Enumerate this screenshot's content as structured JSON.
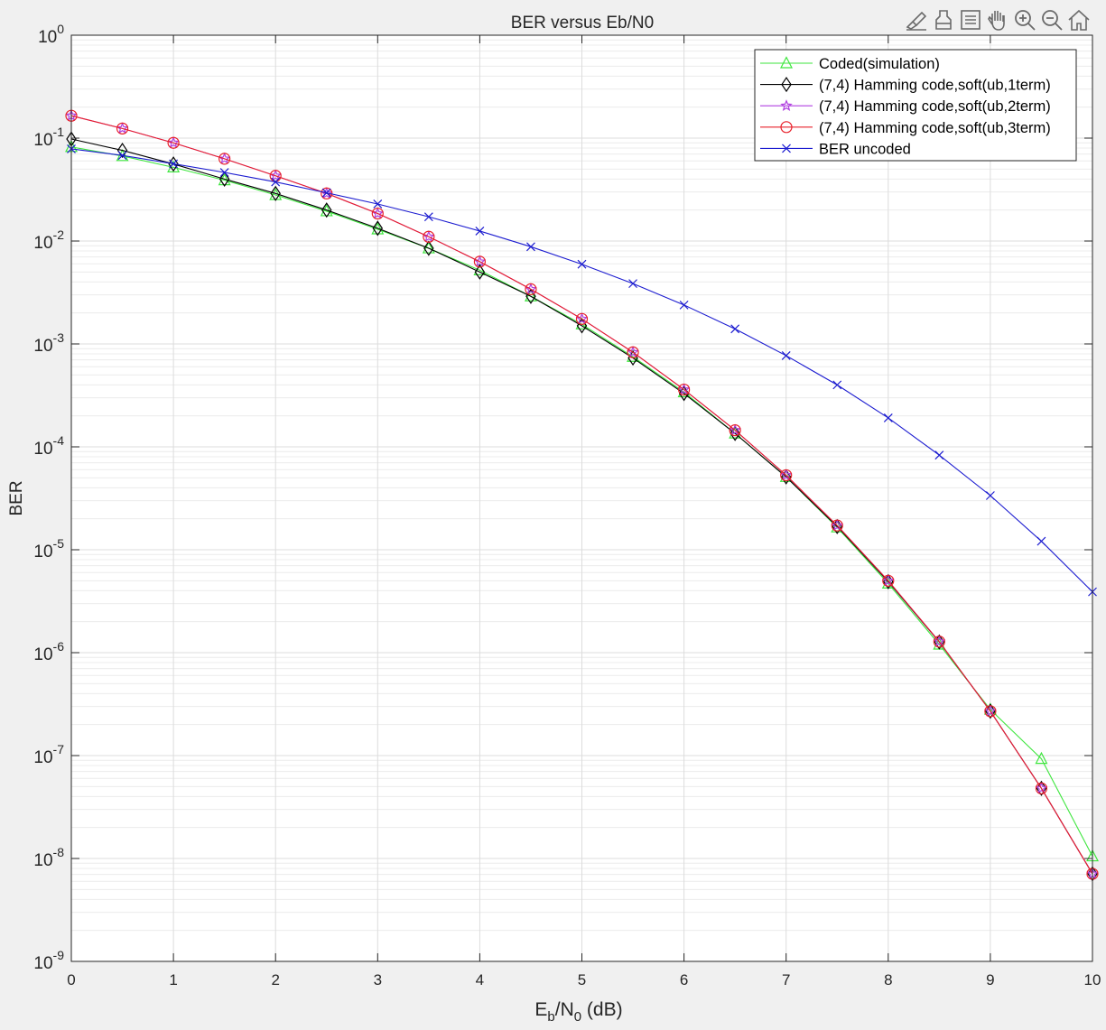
{
  "toolbar": {
    "icons": [
      "edit-plot-icon",
      "save-icon",
      "insert-legend-icon",
      "pan-icon",
      "zoom-in-icon",
      "zoom-out-icon",
      "home-icon"
    ]
  },
  "colors": {
    "background": "#f0f0f0",
    "axes_background": "#ffffff",
    "grid": "#dcdcdc",
    "axis": "#262626"
  },
  "chart_data": {
    "type": "line",
    "title": "BER versus Eb/N0",
    "xlabel": {
      "base": "E",
      "sub1": "b",
      "mid": "/N",
      "sub2": "0",
      "tail": " (dB)"
    },
    "ylabel": "BER",
    "xlim": [
      0,
      10
    ],
    "ylim": [
      1e-09,
      1
    ],
    "yscale": "log",
    "grid": true,
    "minor_grid": true,
    "legend_position": "top-right",
    "x_ticks": [
      {
        "value": 0,
        "label": "0"
      },
      {
        "value": 1,
        "label": "1"
      },
      {
        "value": 2,
        "label": "2"
      },
      {
        "value": 3,
        "label": "3"
      },
      {
        "value": 4,
        "label": "4"
      },
      {
        "value": 5,
        "label": "5"
      },
      {
        "value": 6,
        "label": "6"
      },
      {
        "value": 7,
        "label": "7"
      },
      {
        "value": 8,
        "label": "8"
      },
      {
        "value": 9,
        "label": "9"
      },
      {
        "value": 10,
        "label": "10"
      }
    ],
    "y_ticks": [
      {
        "exp": 0,
        "base": "10",
        "sup": "0"
      },
      {
        "exp": -1,
        "base": "10",
        "sup": "-1"
      },
      {
        "exp": -2,
        "base": "10",
        "sup": "-2"
      },
      {
        "exp": -3,
        "base": "10",
        "sup": "-3"
      },
      {
        "exp": -4,
        "base": "10",
        "sup": "-4"
      },
      {
        "exp": -5,
        "base": "10",
        "sup": "-5"
      },
      {
        "exp": -6,
        "base": "10",
        "sup": "-6"
      },
      {
        "exp": -7,
        "base": "10",
        "sup": "-7"
      },
      {
        "exp": -8,
        "base": "10",
        "sup": "-8"
      },
      {
        "exp": -9,
        "base": "10",
        "sup": "-9"
      }
    ],
    "x": [
      0,
      0.5,
      1,
      1.5,
      2,
      2.5,
      3,
      3.5,
      4,
      4.5,
      5,
      5.5,
      6,
      6.5,
      7,
      7.5,
      8,
      8.5,
      9,
      9.5,
      10
    ],
    "series": [
      {
        "name": "Coded(simulation)",
        "color": "#3ee63e",
        "marker": "triangle",
        "values": [
          0.082,
          0.067,
          0.052,
          0.039,
          0.028,
          0.0195,
          0.013,
          0.0085,
          0.0052,
          0.0029,
          0.00155,
          0.00075,
          0.00034,
          0.000135,
          5.1e-05,
          1.65e-05,
          4.7e-06,
          1.2e-06,
          2.8e-07,
          9.3e-08,
          1.05e-08
        ]
      },
      {
        "name": "(7,4) Hamming code,soft(ub,1term)",
        "color": "#000000",
        "marker": "diamond",
        "values": [
          0.098,
          0.076,
          0.056,
          0.04,
          0.029,
          0.02,
          0.0133,
          0.0085,
          0.005,
          0.0029,
          0.0015,
          0.00073,
          0.00033,
          0.000135,
          5.1e-05,
          1.68e-05,
          4.9e-06,
          1.27e-06,
          2.7e-07,
          4.8e-08,
          7.1e-09
        ]
      },
      {
        "name": "(7,4) Hamming code,soft(ub,2term)",
        "color": "#b040e0",
        "marker": "star",
        "values": [
          0.165,
          0.124,
          0.09,
          0.063,
          0.043,
          0.029,
          0.0185,
          0.011,
          0.0063,
          0.0034,
          0.00175,
          0.00083,
          0.00036,
          0.000145,
          5.3e-05,
          1.72e-05,
          5e-06,
          1.28e-06,
          2.7e-07,
          4.8e-08,
          7.1e-09
        ]
      },
      {
        "name": "(7,4) Hamming code,soft(ub,3term)",
        "color": "#e8202a",
        "marker": "circle",
        "values": [
          0.165,
          0.124,
          0.09,
          0.063,
          0.043,
          0.029,
          0.0185,
          0.011,
          0.0063,
          0.0034,
          0.00175,
          0.00083,
          0.00036,
          0.000145,
          5.3e-05,
          1.72e-05,
          5e-06,
          1.28e-06,
          2.7e-07,
          4.8e-08,
          7.1e-09
        ]
      },
      {
        "name": "BER uncoded",
        "color": "#1c1cd0",
        "marker": "x",
        "values": [
          0.0786,
          0.0679,
          0.0563,
          0.0464,
          0.0375,
          0.0294,
          0.0229,
          0.0172,
          0.0125,
          0.0088,
          0.00595,
          0.00386,
          0.00239,
          0.0014,
          0.00077,
          0.0004,
          0.000191,
          8.3e-05,
          3.36e-05,
          1.21e-05,
          3.9e-06
        ]
      }
    ]
  }
}
